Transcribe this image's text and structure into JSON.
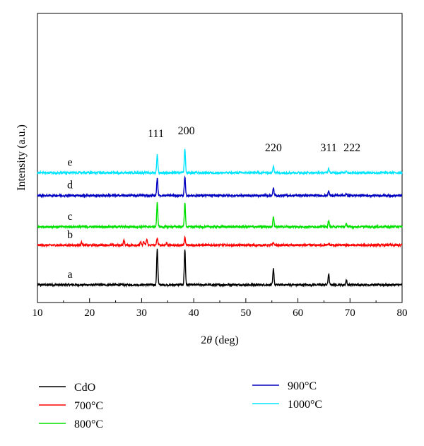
{
  "chart_data": {
    "type": "line",
    "xlabel_prefix": "2",
    "xlabel_theta": "θ",
    "xlabel_suffix": " (deg)",
    "ylabel": "Intensity (a.u.)",
    "xlim": [
      10,
      80
    ],
    "xticks": [
      "10",
      "20",
      "30",
      "40",
      "50",
      "60",
      "70",
      "80"
    ],
    "grid": false,
    "legend_placement": "bottom",
    "peak_labels": [
      {
        "text": "111",
        "x": 33.0
      },
      {
        "text": "200",
        "x": 38.3
      },
      {
        "text": "220",
        "x": 55.3
      },
      {
        "text": "311",
        "x": 65.9
      },
      {
        "text": "222",
        "x": 69.3
      }
    ],
    "series": [
      {
        "name": "CdO",
        "letter": "a",
        "color": "#000000",
        "baseline": 0.0,
        "peaks": [
          {
            "x": 33.0,
            "h": 1.0
          },
          {
            "x": 38.3,
            "h": 0.97
          },
          {
            "x": 55.3,
            "h": 0.44
          },
          {
            "x": 65.9,
            "h": 0.3
          },
          {
            "x": 69.3,
            "h": 0.13
          }
        ]
      },
      {
        "name": "700°C",
        "letter": "b",
        "color": "#ff0000",
        "baseline": 1.08,
        "peaks": [
          {
            "x": 18.5,
            "h": 0.08
          },
          {
            "x": 26.6,
            "h": 0.14
          },
          {
            "x": 29.8,
            "h": 0.08
          },
          {
            "x": 30.4,
            "h": 0.1
          },
          {
            "x": 31.0,
            "h": 0.16
          },
          {
            "x": 33.0,
            "h": 0.2
          },
          {
            "x": 34.8,
            "h": 0.06
          },
          {
            "x": 38.3,
            "h": 0.2
          },
          {
            "x": 55.3,
            "h": 0.07
          },
          {
            "x": 65.9,
            "h": 0.04
          }
        ]
      },
      {
        "name": "800°C",
        "letter": "c",
        "color": "#00e000",
        "baseline": 1.58,
        "peaks": [
          {
            "x": 33.0,
            "h": 0.65
          },
          {
            "x": 38.3,
            "h": 0.65
          },
          {
            "x": 55.3,
            "h": 0.28
          },
          {
            "x": 65.9,
            "h": 0.16
          },
          {
            "x": 69.3,
            "h": 0.08
          }
        ]
      },
      {
        "name": "900°C",
        "letter": "d",
        "color": "#0000c0",
        "baseline": 2.43,
        "peaks": [
          {
            "x": 33.0,
            "h": 0.48
          },
          {
            "x": 38.3,
            "h": 0.5
          },
          {
            "x": 55.3,
            "h": 0.2
          },
          {
            "x": 65.9,
            "h": 0.12
          },
          {
            "x": 69.3,
            "h": 0.04
          }
        ]
      },
      {
        "name": "1000°C",
        "letter": "e",
        "color": "#00e5ff",
        "baseline": 3.05,
        "peaks": [
          {
            "x": 33.0,
            "h": 0.5
          },
          {
            "x": 38.3,
            "h": 0.65
          },
          {
            "x": 55.3,
            "h": 0.2
          },
          {
            "x": 65.9,
            "h": 0.12
          },
          {
            "x": 69.3,
            "h": 0.06
          }
        ]
      }
    ]
  }
}
